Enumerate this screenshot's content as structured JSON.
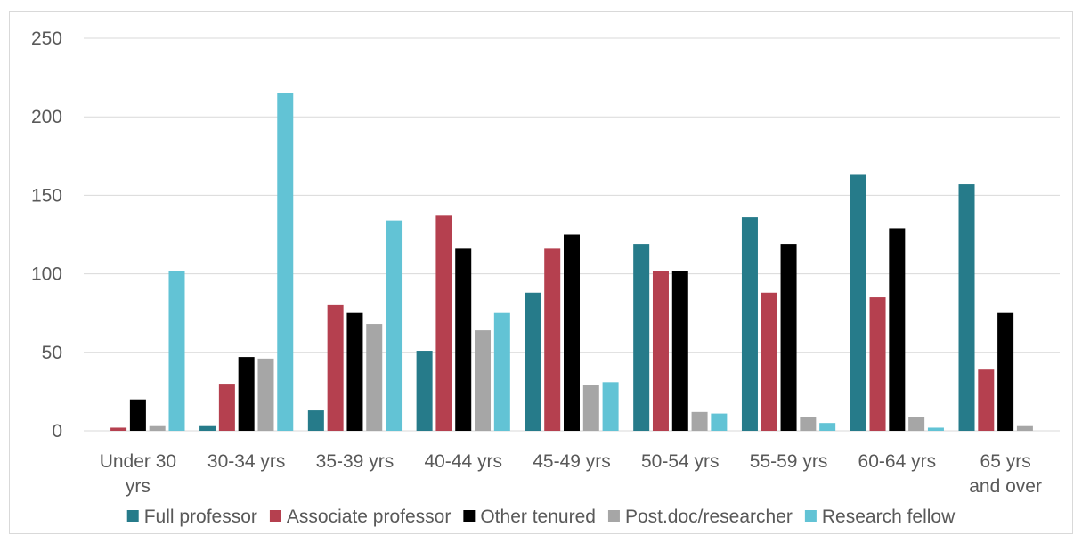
{
  "chart_data": {
    "type": "bar",
    "title": "",
    "xlabel": "",
    "ylabel": "",
    "ylim": [
      0,
      250
    ],
    "yticks": [
      0,
      50,
      100,
      150,
      200,
      250
    ],
    "grid": true,
    "legend": "bottom",
    "categories": [
      [
        "Under 30",
        "yrs"
      ],
      [
        "30-34 yrs"
      ],
      [
        "35-39 yrs"
      ],
      [
        "40-44 yrs"
      ],
      [
        "45-49 yrs"
      ],
      [
        "50-54 yrs"
      ],
      [
        "55-59 yrs"
      ],
      [
        "60-64 yrs"
      ],
      [
        "65 yrs",
        "and over"
      ]
    ],
    "series": [
      {
        "name": "Full professor",
        "color": "#267b8a",
        "values": [
          0,
          3,
          13,
          51,
          88,
          119,
          136,
          163,
          157
        ]
      },
      {
        "name": "Associate professor",
        "color": "#b5404f",
        "values": [
          2,
          30,
          80,
          137,
          116,
          102,
          88,
          85,
          39
        ]
      },
      {
        "name": "Other tenured",
        "color": "#000000",
        "values": [
          20,
          47,
          75,
          116,
          125,
          102,
          119,
          129,
          75
        ]
      },
      {
        "name": "Post.doc/researcher",
        "color": "#a6a6a6",
        "values": [
          3,
          46,
          68,
          64,
          29,
          12,
          9,
          9,
          3
        ]
      },
      {
        "name": "Research fellow",
        "color": "#62c3d5",
        "values": [
          102,
          215,
          134,
          75,
          31,
          11,
          5,
          2,
          0
        ]
      }
    ]
  }
}
